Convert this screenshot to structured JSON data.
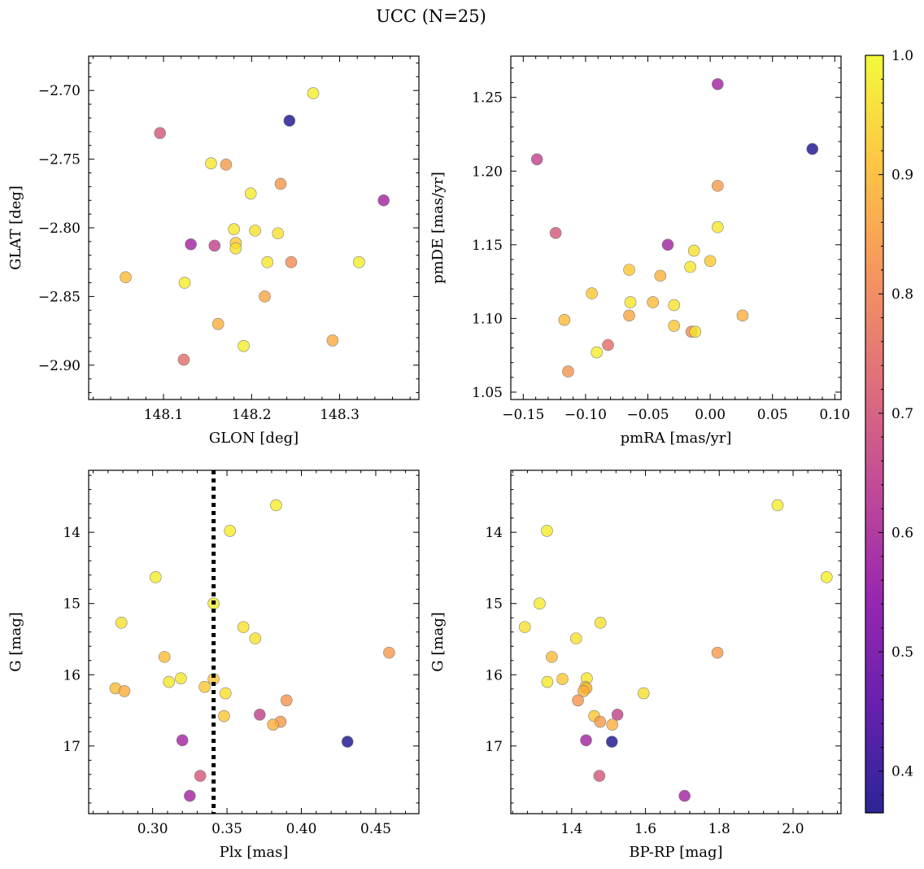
{
  "figure": {
    "title": "UCC (N=25)",
    "colormap": [
      "#0d0887",
      "#5302a3",
      "#8b0aa5",
      "#b83289",
      "#db5c68",
      "#f48849",
      "#febd2a",
      "#f0f921"
    ],
    "marker_alpha": 0.78,
    "marker_edge_color": "#7f7f7f"
  },
  "colorbar": {
    "range": [
      0.365,
      1.0
    ],
    "ticks": [
      0.4,
      0.5,
      0.6,
      0.7,
      0.8,
      0.9,
      1.0
    ],
    "tick_labels": [
      "0.4",
      "0.5",
      "0.6",
      "0.7",
      "0.8",
      "0.9",
      "1.0"
    ]
  },
  "chart_data": [
    {
      "type": "scatter",
      "xlabel": "GLON [deg]",
      "ylabel": "GLAT [deg]",
      "xlim": [
        148.015,
        148.39
      ],
      "ylim": [
        -2.925,
        -2.675
      ],
      "xticks": [
        148.1,
        148.2,
        148.3
      ],
      "xtick_labels": [
        "148.1",
        "148.2",
        "148.3"
      ],
      "yticks": [
        -2.9,
        -2.85,
        -2.8,
        -2.75,
        -2.7
      ],
      "ytick_labels": [
        "−2.90",
        "−2.85",
        "−2.80",
        "−2.75",
        "−2.70"
      ],
      "y_inverted": false,
      "points": [
        {
          "x": 148.27,
          "y": -2.702,
          "c": 0.98
        },
        {
          "x": 148.243,
          "y": -2.722,
          "c": 0.37
        },
        {
          "x": 148.096,
          "y": -2.731,
          "c": 0.7
        },
        {
          "x": 148.154,
          "y": -2.753,
          "c": 0.97
        },
        {
          "x": 148.171,
          "y": -2.754,
          "c": 0.84
        },
        {
          "x": 148.233,
          "y": -2.768,
          "c": 0.83
        },
        {
          "x": 148.199,
          "y": -2.775,
          "c": 0.98
        },
        {
          "x": 148.35,
          "y": -2.78,
          "c": 0.58
        },
        {
          "x": 148.18,
          "y": -2.801,
          "c": 0.97
        },
        {
          "x": 148.204,
          "y": -2.802,
          "c": 0.96
        },
        {
          "x": 148.23,
          "y": -2.804,
          "c": 0.96
        },
        {
          "x": 148.182,
          "y": -2.811,
          "c": 0.92
        },
        {
          "x": 148.131,
          "y": -2.812,
          "c": 0.58
        },
        {
          "x": 148.158,
          "y": -2.813,
          "c": 0.65
        },
        {
          "x": 148.182,
          "y": -2.815,
          "c": 0.96
        },
        {
          "x": 148.218,
          "y": -2.825,
          "c": 0.97
        },
        {
          "x": 148.245,
          "y": -2.825,
          "c": 0.81
        },
        {
          "x": 148.322,
          "y": -2.825,
          "c": 0.98
        },
        {
          "x": 148.057,
          "y": -2.836,
          "c": 0.9
        },
        {
          "x": 148.124,
          "y": -2.84,
          "c": 0.98
        },
        {
          "x": 148.215,
          "y": -2.85,
          "c": 0.86
        },
        {
          "x": 148.162,
          "y": -2.87,
          "c": 0.88
        },
        {
          "x": 148.292,
          "y": -2.882,
          "c": 0.87
        },
        {
          "x": 148.191,
          "y": -2.886,
          "c": 0.98
        },
        {
          "x": 148.123,
          "y": -2.896,
          "c": 0.75
        }
      ]
    },
    {
      "type": "scatter",
      "xlabel": "pmRA [mas/yr]",
      "ylabel": "pmDE [mas/yr]",
      "xlim": [
        -0.16,
        0.105
      ],
      "ylim": [
        1.045,
        1.278
      ],
      "xticks": [
        -0.15,
        -0.1,
        -0.05,
        0.0,
        0.05,
        0.1
      ],
      "xtick_labels": [
        "−0.15",
        "−0.10",
        "−0.05",
        "0.00",
        "0.05",
        "0.10"
      ],
      "yticks": [
        1.05,
        1.1,
        1.15,
        1.2,
        1.25
      ],
      "ytick_labels": [
        "1.05",
        "1.10",
        "1.15",
        "1.20",
        "1.25"
      ],
      "y_inverted": false,
      "points": [
        {
          "x": 0.006,
          "y": 1.259,
          "c": 0.58
        },
        {
          "x": 0.082,
          "y": 1.215,
          "c": 0.37
        },
        {
          "x": -0.139,
          "y": 1.208,
          "c": 0.65
        },
        {
          "x": 0.006,
          "y": 1.19,
          "c": 0.84
        },
        {
          "x": -0.124,
          "y": 1.158,
          "c": 0.7
        },
        {
          "x": 0.006,
          "y": 1.162,
          "c": 0.97
        },
        {
          "x": -0.034,
          "y": 1.15,
          "c": 0.58
        },
        {
          "x": -0.013,
          "y": 1.146,
          "c": 0.96
        },
        {
          "x": 0.0,
          "y": 1.139,
          "c": 0.92
        },
        {
          "x": -0.016,
          "y": 1.135,
          "c": 0.97
        },
        {
          "x": -0.065,
          "y": 1.133,
          "c": 0.92
        },
        {
          "x": -0.04,
          "y": 1.129,
          "c": 0.88
        },
        {
          "x": -0.095,
          "y": 1.117,
          "c": 0.92
        },
        {
          "x": -0.064,
          "y": 1.111,
          "c": 0.97
        },
        {
          "x": -0.046,
          "y": 1.111,
          "c": 0.9
        },
        {
          "x": -0.029,
          "y": 1.109,
          "c": 0.96
        },
        {
          "x": 0.026,
          "y": 1.102,
          "c": 0.88
        },
        {
          "x": -0.065,
          "y": 1.102,
          "c": 0.86
        },
        {
          "x": -0.117,
          "y": 1.099,
          "c": 0.9
        },
        {
          "x": -0.029,
          "y": 1.095,
          "c": 0.92
        },
        {
          "x": -0.015,
          "y": 1.091,
          "c": 0.81
        },
        {
          "x": -0.012,
          "y": 1.091,
          "c": 0.97
        },
        {
          "x": -0.082,
          "y": 1.082,
          "c": 0.75
        },
        {
          "x": -0.091,
          "y": 1.077,
          "c": 0.98
        },
        {
          "x": -0.114,
          "y": 1.064,
          "c": 0.83
        }
      ]
    },
    {
      "type": "scatter",
      "xlabel": "Plx [mas]",
      "ylabel": "G [mag]",
      "xlim": [
        0.257,
        0.479
      ],
      "ylim": [
        17.95,
        13.13
      ],
      "xticks": [
        0.3,
        0.35,
        0.4,
        0.45
      ],
      "xtick_labels": [
        "0.30",
        "0.35",
        "0.40",
        "0.45"
      ],
      "yticks": [
        14,
        15,
        16,
        17
      ],
      "ytick_labels": [
        "14",
        "15",
        "16",
        "17"
      ],
      "y_inverted": true,
      "vline": {
        "x": 0.341,
        "style": "dotted",
        "color": "#000000"
      },
      "points": [
        {
          "x": 0.383,
          "y": 13.62,
          "c": 0.98
        },
        {
          "x": 0.352,
          "y": 13.98,
          "c": 0.98
        },
        {
          "x": 0.302,
          "y": 14.63,
          "c": 0.98
        },
        {
          "x": 0.341,
          "y": 15.0,
          "c": 0.98
        },
        {
          "x": 0.279,
          "y": 15.27,
          "c": 0.96
        },
        {
          "x": 0.361,
          "y": 15.33,
          "c": 0.96
        },
        {
          "x": 0.369,
          "y": 15.49,
          "c": 0.96
        },
        {
          "x": 0.459,
          "y": 15.69,
          "c": 0.84
        },
        {
          "x": 0.308,
          "y": 15.75,
          "c": 0.9
        },
        {
          "x": 0.319,
          "y": 16.05,
          "c": 0.97
        },
        {
          "x": 0.341,
          "y": 16.06,
          "c": 0.92
        },
        {
          "x": 0.311,
          "y": 16.1,
          "c": 0.97
        },
        {
          "x": 0.335,
          "y": 16.17,
          "c": 0.92
        },
        {
          "x": 0.275,
          "y": 16.19,
          "c": 0.9
        },
        {
          "x": 0.281,
          "y": 16.23,
          "c": 0.88
        },
        {
          "x": 0.349,
          "y": 16.26,
          "c": 0.96
        },
        {
          "x": 0.39,
          "y": 16.36,
          "c": 0.83
        },
        {
          "x": 0.372,
          "y": 16.56,
          "c": 0.65
        },
        {
          "x": 0.348,
          "y": 16.58,
          "c": 0.92
        },
        {
          "x": 0.386,
          "y": 16.66,
          "c": 0.84
        },
        {
          "x": 0.381,
          "y": 16.7,
          "c": 0.88
        },
        {
          "x": 0.32,
          "y": 16.92,
          "c": 0.58
        },
        {
          "x": 0.431,
          "y": 16.94,
          "c": 0.37
        },
        {
          "x": 0.332,
          "y": 17.42,
          "c": 0.7
        },
        {
          "x": 0.325,
          "y": 17.7,
          "c": 0.58
        }
      ]
    },
    {
      "type": "scatter",
      "xlabel": "BP-RP [mag]",
      "ylabel": "G [mag]",
      "xlim": [
        1.235,
        2.13
      ],
      "ylim": [
        17.95,
        13.13
      ],
      "xticks": [
        1.4,
        1.6,
        1.8,
        2.0
      ],
      "xtick_labels": [
        "1.4",
        "1.6",
        "1.8",
        "2.0"
      ],
      "yticks": [
        14,
        15,
        16,
        17
      ],
      "ytick_labels": [
        "14",
        "15",
        "16",
        "17"
      ],
      "y_inverted": true,
      "points": [
        {
          "x": 1.958,
          "y": 13.62,
          "c": 0.98
        },
        {
          "x": 1.333,
          "y": 13.98,
          "c": 0.98
        },
        {
          "x": 2.091,
          "y": 14.63,
          "c": 0.98
        },
        {
          "x": 1.313,
          "y": 15.0,
          "c": 0.98
        },
        {
          "x": 1.478,
          "y": 15.27,
          "c": 0.96
        },
        {
          "x": 1.273,
          "y": 15.33,
          "c": 0.96
        },
        {
          "x": 1.412,
          "y": 15.49,
          "c": 0.96
        },
        {
          "x": 1.795,
          "y": 15.69,
          "c": 0.84
        },
        {
          "x": 1.346,
          "y": 15.75,
          "c": 0.9
        },
        {
          "x": 1.441,
          "y": 16.05,
          "c": 0.97
        },
        {
          "x": 1.375,
          "y": 16.06,
          "c": 0.92
        },
        {
          "x": 1.334,
          "y": 16.1,
          "c": 0.97
        },
        {
          "x": 1.437,
          "y": 16.17,
          "c": 0.92
        },
        {
          "x": 1.44,
          "y": 16.19,
          "c": 0.9
        },
        {
          "x": 1.432,
          "y": 16.23,
          "c": 0.88
        },
        {
          "x": 1.595,
          "y": 16.26,
          "c": 0.96
        },
        {
          "x": 1.417,
          "y": 16.36,
          "c": 0.83
        },
        {
          "x": 1.524,
          "y": 16.56,
          "c": 0.65
        },
        {
          "x": 1.461,
          "y": 16.58,
          "c": 0.92
        },
        {
          "x": 1.477,
          "y": 16.66,
          "c": 0.84
        },
        {
          "x": 1.51,
          "y": 16.7,
          "c": 0.88
        },
        {
          "x": 1.439,
          "y": 16.92,
          "c": 0.58
        },
        {
          "x": 1.509,
          "y": 16.94,
          "c": 0.37
        },
        {
          "x": 1.475,
          "y": 17.42,
          "c": 0.7
        },
        {
          "x": 1.706,
          "y": 17.7,
          "c": 0.58
        }
      ]
    }
  ]
}
